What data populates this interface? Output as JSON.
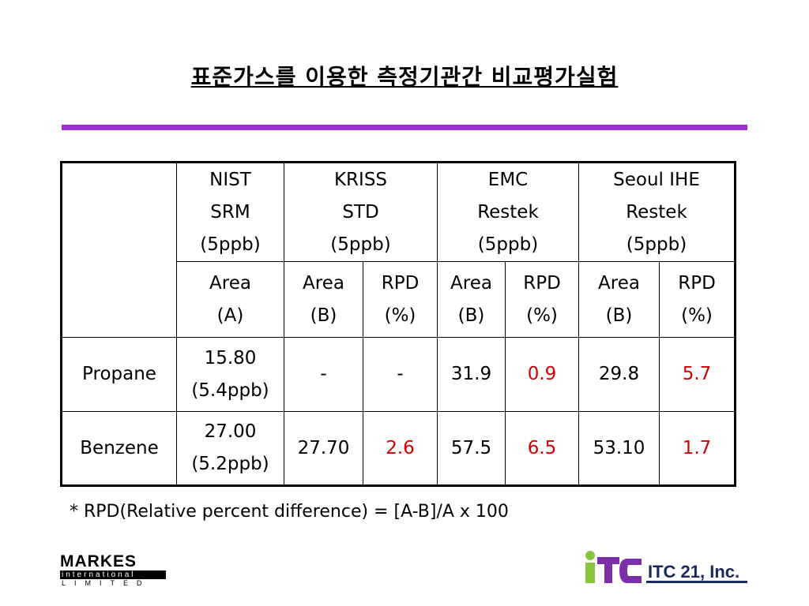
{
  "title": "표준가스를 이용한 측정기관간 비교평가실험",
  "colors": {
    "accent_rule": "#9c2fd6",
    "rpd_value": "#d00000",
    "itc_green": "#8bc53f",
    "itc_purple": "#7b2fa8",
    "itc_text": "#1a2a5e"
  },
  "table": {
    "groups": [
      {
        "lines": [
          "NIST",
          "SRM",
          "(5ppb)"
        ]
      },
      {
        "lines": [
          "KRISS",
          "STD",
          "(5ppb)"
        ]
      },
      {
        "lines": [
          "EMC",
          "Restek",
          "(5ppb)"
        ]
      },
      {
        "lines": [
          "Seoul IHE",
          "Restek",
          "(5ppb)"
        ]
      }
    ],
    "subheaders": [
      [
        "Area",
        "(A)"
      ],
      [
        "Area",
        "(B)"
      ],
      [
        "RPD",
        "(%)"
      ],
      [
        "Area",
        "(B)"
      ],
      [
        "RPD",
        "(%)"
      ],
      [
        "Area",
        "(B)"
      ],
      [
        "RPD",
        "(%)"
      ]
    ],
    "rows": [
      {
        "label": "Propane",
        "ref": [
          "15.80",
          "(5.4ppb)"
        ],
        "cells": [
          "-",
          "-",
          "31.9",
          "0.9",
          "29.8",
          "5.7"
        ]
      },
      {
        "label": "Benzene",
        "ref": [
          "27.00",
          "(5.2ppb)"
        ],
        "cells": [
          "27.70",
          "2.6",
          "57.5",
          "6.5",
          "53.10",
          "1.7"
        ]
      }
    ]
  },
  "footnote": "* RPD(Relative percent difference) = [A-B]/A x 100",
  "logos": {
    "markes": {
      "line1": "MARKES",
      "line2": "international",
      "line3": "LIMITED"
    },
    "itc": {
      "company": "ITC 21, Inc."
    }
  }
}
